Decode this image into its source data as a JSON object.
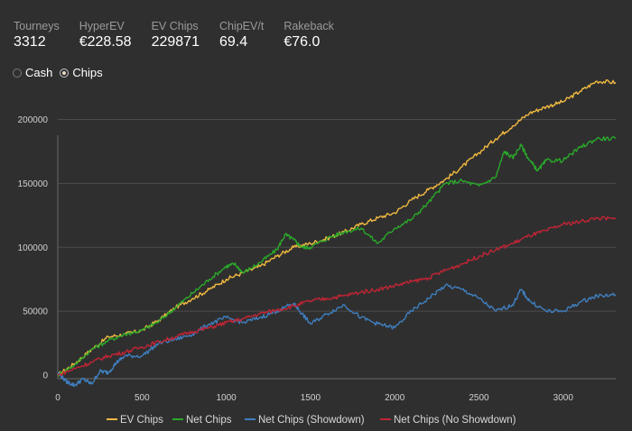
{
  "stats": [
    {
      "label": "Tourneys",
      "value": "3312"
    },
    {
      "label": "HyperEV",
      "value": "€228.58"
    },
    {
      "label": "EV Chips",
      "value": "229871"
    },
    {
      "label": "ChipEV/t",
      "value": "69.4"
    },
    {
      "label": "Rakeback",
      "value": "€76.0"
    }
  ],
  "mode_toggle": {
    "options": [
      {
        "label": "Cash",
        "selected": false
      },
      {
        "label": "Chips",
        "selected": true
      }
    ]
  },
  "chart_data": {
    "type": "line",
    "xlim": [
      0,
      3312
    ],
    "ylim": [
      0,
      230000
    ],
    "x_ticks": [
      0,
      500,
      1000,
      1500,
      2000,
      2500,
      3000
    ],
    "y_ticks": [
      0,
      50000,
      100000,
      150000,
      200000
    ],
    "grid": "horizontal",
    "legend_position": "bottom",
    "series": [
      {
        "name": "EV Chips",
        "color": "#f0b940",
        "points": [
          [
            0,
            0
          ],
          [
            100,
            9000
          ],
          [
            200,
            20000
          ],
          [
            300,
            30000
          ],
          [
            400,
            32000
          ],
          [
            500,
            35000
          ],
          [
            600,
            43000
          ],
          [
            700,
            53000
          ],
          [
            800,
            60000
          ],
          [
            900,
            67000
          ],
          [
            1000,
            75000
          ],
          [
            1100,
            80000
          ],
          [
            1200,
            85000
          ],
          [
            1300,
            93000
          ],
          [
            1400,
            100000
          ],
          [
            1500,
            103000
          ],
          [
            1600,
            107000
          ],
          [
            1700,
            112000
          ],
          [
            1800,
            118000
          ],
          [
            1900,
            123000
          ],
          [
            2000,
            127000
          ],
          [
            2100,
            137000
          ],
          [
            2200,
            145000
          ],
          [
            2300,
            153000
          ],
          [
            2400,
            163000
          ],
          [
            2500,
            174000
          ],
          [
            2600,
            185000
          ],
          [
            2700,
            195000
          ],
          [
            2800,
            205000
          ],
          [
            2900,
            210000
          ],
          [
            3000,
            214000
          ],
          [
            3100,
            222000
          ],
          [
            3200,
            230000
          ],
          [
            3312,
            229000
          ]
        ]
      },
      {
        "name": "Net Chips",
        "color": "#2aa82a",
        "points": [
          [
            0,
            0
          ],
          [
            100,
            8000
          ],
          [
            200,
            20000
          ],
          [
            300,
            27000
          ],
          [
            400,
            32000
          ],
          [
            500,
            35000
          ],
          [
            600,
            42000
          ],
          [
            700,
            53000
          ],
          [
            800,
            64000
          ],
          [
            900,
            75000
          ],
          [
            1000,
            85000
          ],
          [
            1050,
            87000
          ],
          [
            1100,
            80000
          ],
          [
            1200,
            88000
          ],
          [
            1300,
            98000
          ],
          [
            1350,
            110000
          ],
          [
            1400,
            106000
          ],
          [
            1450,
            100000
          ],
          [
            1500,
            100000
          ],
          [
            1600,
            107000
          ],
          [
            1700,
            112000
          ],
          [
            1800,
            115000
          ],
          [
            1900,
            103000
          ],
          [
            2000,
            115000
          ],
          [
            2100,
            122000
          ],
          [
            2200,
            135000
          ],
          [
            2300,
            150000
          ],
          [
            2400,
            152000
          ],
          [
            2500,
            148000
          ],
          [
            2600,
            155000
          ],
          [
            2650,
            175000
          ],
          [
            2700,
            170000
          ],
          [
            2750,
            180000
          ],
          [
            2800,
            168000
          ],
          [
            2850,
            160000
          ],
          [
            2900,
            168000
          ],
          [
            3000,
            168000
          ],
          [
            3100,
            178000
          ],
          [
            3200,
            185000
          ],
          [
            3312,
            185000
          ]
        ]
      },
      {
        "name": "Net Chips (Showdown)",
        "color": "#3f7fbf",
        "points": [
          [
            0,
            2000
          ],
          [
            50,
            -5000
          ],
          [
            100,
            -8000
          ],
          [
            150,
            -3000
          ],
          [
            200,
            -7000
          ],
          [
            250,
            3000
          ],
          [
            300,
            2000
          ],
          [
            350,
            10000
          ],
          [
            400,
            15000
          ],
          [
            500,
            15000
          ],
          [
            600,
            25000
          ],
          [
            700,
            28000
          ],
          [
            800,
            32000
          ],
          [
            900,
            40000
          ],
          [
            1000,
            45000
          ],
          [
            1100,
            41000
          ],
          [
            1200,
            45000
          ],
          [
            1300,
            50000
          ],
          [
            1400,
            56000
          ],
          [
            1450,
            48000
          ],
          [
            1500,
            40000
          ],
          [
            1600,
            48000
          ],
          [
            1700,
            55000
          ],
          [
            1800,
            45000
          ],
          [
            1900,
            40000
          ],
          [
            2000,
            37000
          ],
          [
            2100,
            50000
          ],
          [
            2200,
            60000
          ],
          [
            2300,
            70000
          ],
          [
            2400,
            67000
          ],
          [
            2500,
            60000
          ],
          [
            2600,
            50000
          ],
          [
            2700,
            55000
          ],
          [
            2750,
            67000
          ],
          [
            2800,
            58000
          ],
          [
            2900,
            50000
          ],
          [
            3000,
            50000
          ],
          [
            3100,
            57000
          ],
          [
            3200,
            62000
          ],
          [
            3312,
            63000
          ]
        ]
      },
      {
        "name": "Net Chips (No Showdown)",
        "color": "#c02535",
        "points": [
          [
            0,
            0
          ],
          [
            100,
            5000
          ],
          [
            200,
            10000
          ],
          [
            300,
            15000
          ],
          [
            400,
            18000
          ],
          [
            500,
            22000
          ],
          [
            600,
            26000
          ],
          [
            700,
            30000
          ],
          [
            800,
            34000
          ],
          [
            900,
            37000
          ],
          [
            1000,
            41000
          ],
          [
            1100,
            44000
          ],
          [
            1200,
            48000
          ],
          [
            1300,
            51000
          ],
          [
            1400,
            54000
          ],
          [
            1500,
            58000
          ],
          [
            1600,
            60000
          ],
          [
            1700,
            62000
          ],
          [
            1800,
            65000
          ],
          [
            1900,
            67000
          ],
          [
            2000,
            70000
          ],
          [
            2100,
            73000
          ],
          [
            2200,
            76000
          ],
          [
            2300,
            82000
          ],
          [
            2400,
            87000
          ],
          [
            2500,
            93000
          ],
          [
            2600,
            98000
          ],
          [
            2700,
            103000
          ],
          [
            2800,
            109000
          ],
          [
            2900,
            113000
          ],
          [
            3000,
            118000
          ],
          [
            3100,
            120000
          ],
          [
            3200,
            123000
          ],
          [
            3312,
            122000
          ]
        ]
      }
    ]
  },
  "style": {
    "gridline_color": "#4c4c4c",
    "axis_color": "#6a6a6a"
  }
}
